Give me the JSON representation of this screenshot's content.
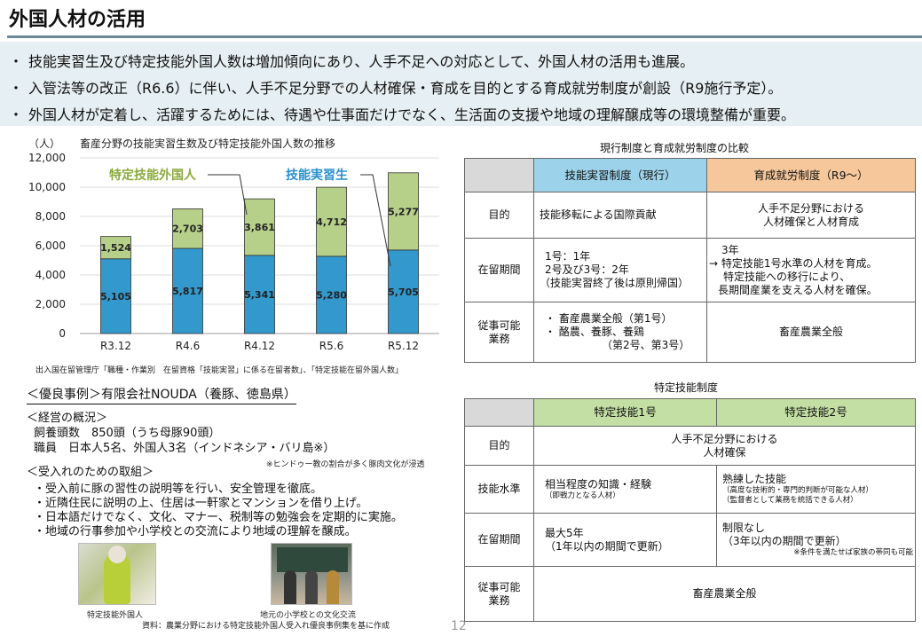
{
  "page": {
    "title": "外国人材の活用",
    "number": "12"
  },
  "bullets": [
    "技能実習生及び特定技能外国人数は増加傾向にあり、人手不足への対応として、外国人材の活用も進展。",
    "入管法等の改正（R6.6）に伴い、人手不足分野での人材確保・育成を目的とする育成就労制度が創設（R9施行予定）。",
    "外国人材が定着し、活躍するためには、待遇や仕事面だけでなく、生活面の支援や地域の理解醸成等の環境整備が重要。"
  ],
  "bullet_marker": "・",
  "chart_data": {
    "type": "bar",
    "stacked": true,
    "title": "畜産分野の技能実習生数及び特定技能外国人数の推移",
    "ylabel": "（人）",
    "ylim": [
      0,
      12000
    ],
    "yticks": [
      "0",
      "2,000",
      "4,000",
      "6,000",
      "8,000",
      "10,000",
      "12,000"
    ],
    "categories": [
      "R3.12",
      "R4.6",
      "R4.12",
      "R5.6",
      "R5.12"
    ],
    "series": [
      {
        "name": "技能実習生",
        "color": "#3399cc",
        "values": [
          5105,
          5817,
          5341,
          5280,
          5705
        ],
        "labels": [
          "5,105",
          "5,817",
          "5,341",
          "5,280",
          "5,705"
        ]
      },
      {
        "name": "特定技能外国人",
        "color": "#b7d089",
        "values": [
          1524,
          2703,
          3861,
          4712,
          5277
        ],
        "labels": [
          "1,524",
          "2,703",
          "3,861",
          "4,712",
          "5,277"
        ]
      }
    ],
    "legend_colors": {
      "tokutei": "#8aaa3c",
      "jisshu": "#2a8fcf"
    }
  },
  "chart_source": "出入国在留管理庁「職種・作業別　在留資格「技能実習」に係る在留者数」、「特定技能在留外国人数」",
  "case": {
    "heading": "＜優良事例＞有限会社NOUDA（養豚、徳島県）",
    "overview_heading": "＜経営の概況＞",
    "overview_lines": [
      "飼養頭数　850頭（うち母豚90頭）",
      "職員　日本人5名、外国人3名（インドネシア・バリ島※）"
    ],
    "overview_note": "※ヒンドゥー教の割合が多く豚肉文化が浸透",
    "efforts_heading": "＜受入れのための取組＞",
    "efforts": [
      "・受入前に豚の習性の説明等を行い、安全管理を徹底。",
      "・近隣住民に説明の上、住居は一軒家とマンションを借り上げ。",
      "・日本語だけでなく、文化、マナー、税制等の勉強会を定期的に実施。",
      "・地域の行事参加や小学校との交流により地域の理解を醸成。"
    ],
    "photo1_caption": "特定技能外国人",
    "photo2_caption": "地元の小学校との文化交流",
    "source": "資料：農業分野における特定技能外国人受入れ優良事例集を基に作成"
  },
  "compare_table": {
    "title": "現行制度と育成就労制度の比較",
    "col1": "技能実習制度（現行）",
    "col2": "育成就労制度（R9～）",
    "rows": [
      {
        "label": "目的",
        "c1": "技能移転による国際貢献",
        "c2_lines": [
          "人手不足分野における",
          "人材確保と人材育成"
        ]
      },
      {
        "label": "在留期間",
        "c1_lines": [
          "1号：1年",
          "2号及び3号：2年",
          "（技能実習終了後は原則帰国）"
        ],
        "c2_lines": [
          "3年",
          "→ 特定技能1号水準の人材を育成。",
          "特定技能への移行により、",
          "長期間産業を支える人材を確保。"
        ]
      },
      {
        "label_lines": [
          "従事可能",
          "業務"
        ],
        "c1_lines": [
          "・ 畜産農業全般（第1号）",
          "・ 酪農、養豚、養鶏",
          "（第2号、第3号）"
        ],
        "c2": "畜産農業全般"
      }
    ]
  },
  "tokutei_table": {
    "title": "特定技能制度",
    "col1": "特定技能1号",
    "col2": "特定技能2号",
    "purpose_label": "目的",
    "purpose_lines": [
      "人手不足分野における",
      "人材確保"
    ],
    "skill_label": "技能水準",
    "skill_c1": "相当程度の知識・経験",
    "skill_c1_sub": "（即戦力となる人材）",
    "skill_c2": "熟練した技能",
    "skill_c2_sub1": "（高度な技術的・専門的判断が可能な人材）",
    "skill_c2_sub2": "（監督者として業務を統括できる人材）",
    "period_label": "在留期間",
    "period_c1_lines": [
      "最大5年",
      "（1年以内の期間で更新）"
    ],
    "period_c2_lines": [
      "制限なし",
      "（3年以内の期間で更新）"
    ],
    "period_note": "※条件を満たせば家族の帯同も可能",
    "work_label_lines": [
      "従事可能",
      "業務"
    ],
    "work_value": "畜産農業全般"
  }
}
